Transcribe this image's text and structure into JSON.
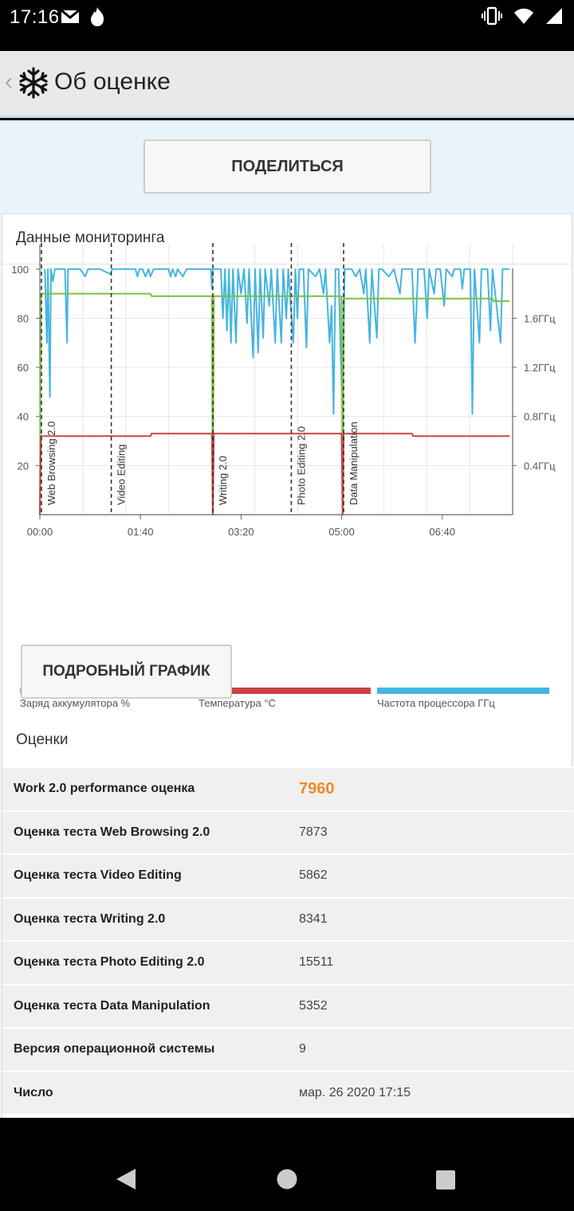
{
  "status_bar": {
    "time": "17:16",
    "left_icons": [
      "gmail-icon",
      "fire-icon"
    ],
    "right_icons": [
      "vibrate-icon",
      "wifi-icon",
      "signal-icon"
    ]
  },
  "app_bar": {
    "title": "Об оценке",
    "logo_icon": "snowflake-logo-icon",
    "back_icon": "chevron-left-icon"
  },
  "share": {
    "label": "ПОДЕЛИТЬСЯ"
  },
  "monitoring": {
    "title": "Данные мониторинга",
    "detail_button": "ПОДРОБНЫЙ ГРАФИК"
  },
  "chart_data": {
    "type": "line",
    "x_ticks": [
      "00:00",
      "01:40",
      "03:20",
      "05:00",
      "06:40"
    ],
    "x_range_seconds": [
      0,
      470
    ],
    "y_left_ticks": [
      "20",
      "40",
      "60",
      "80",
      "100"
    ],
    "y_left_range": [
      0,
      110
    ],
    "y_right_ticks": [
      "0.4ГГц",
      "0.8ГГц",
      "1.2ГГц",
      "1.6ГГц"
    ],
    "grid": true,
    "markers": [
      {
        "label": "Web Browsing 2.0",
        "t": 0
      },
      {
        "label": "Video Editing",
        "t": 71
      },
      {
        "label": "Writing 2.0",
        "t": 172
      },
      {
        "label": "Photo Editing 2.0",
        "t": 250
      },
      {
        "label": "Data Manipulation",
        "t": 302
      }
    ],
    "series": [
      {
        "name": "Заряд аккумулятора %",
        "color": "#7cbf3f",
        "points": [
          [
            0,
            0
          ],
          [
            1,
            90
          ],
          [
            110,
            90
          ],
          [
            111,
            89
          ],
          [
            171,
            89
          ],
          [
            172,
            0
          ],
          [
            173,
            89
          ],
          [
            300,
            89
          ],
          [
            301,
            0
          ],
          [
            302,
            88
          ],
          [
            450,
            88
          ],
          [
            451,
            87
          ],
          [
            467,
            87
          ]
        ]
      },
      {
        "name": "Температура °C",
        "color": "#c94343",
        "points": [
          [
            0,
            0
          ],
          [
            1,
            32
          ],
          [
            110,
            32
          ],
          [
            111,
            33
          ],
          [
            171,
            33
          ],
          [
            172,
            0
          ],
          [
            173,
            33
          ],
          [
            300,
            33
          ],
          [
            301,
            0
          ],
          [
            302,
            33
          ],
          [
            370,
            33
          ],
          [
            371,
            32
          ],
          [
            467,
            32
          ]
        ]
      },
      {
        "name": "Частота процессора ГГц",
        "color": "#45b5df",
        "points": [
          [
            5,
            100
          ],
          [
            7,
            70
          ],
          [
            8,
            100
          ],
          [
            10,
            48
          ],
          [
            11,
            100
          ],
          [
            13,
            95
          ],
          [
            15,
            100
          ],
          [
            25,
            100
          ],
          [
            27,
            70
          ],
          [
            28,
            100
          ],
          [
            33,
            100
          ],
          [
            40,
            100
          ],
          [
            45,
            97
          ],
          [
            48,
            100
          ],
          [
            55,
            100
          ],
          [
            60,
            100
          ],
          [
            70,
            98
          ],
          [
            72,
            100
          ],
          [
            95,
            100
          ],
          [
            97,
            97
          ],
          [
            99,
            100
          ],
          [
            102,
            100
          ],
          [
            105,
            97
          ],
          [
            108,
            100
          ],
          [
            110,
            97
          ],
          [
            113,
            100
          ],
          [
            128,
            100
          ],
          [
            130,
            97
          ],
          [
            132,
            100
          ],
          [
            135,
            97
          ],
          [
            137,
            100
          ],
          [
            142,
            97
          ],
          [
            146,
            100
          ],
          [
            170,
            100
          ],
          [
            171,
            92
          ],
          [
            172,
            100
          ],
          [
            180,
            100
          ],
          [
            182,
            80
          ],
          [
            184,
            100
          ],
          [
            186,
            75
          ],
          [
            188,
            100
          ],
          [
            190,
            70
          ],
          [
            192,
            100
          ],
          [
            195,
            70
          ],
          [
            197,
            100
          ],
          [
            200,
            90
          ],
          [
            203,
            100
          ],
          [
            206,
            78
          ],
          [
            208,
            100
          ],
          [
            212,
            64
          ],
          [
            214,
            100
          ],
          [
            217,
            66
          ],
          [
            219,
            100
          ],
          [
            222,
            72
          ],
          [
            224,
            100
          ],
          [
            228,
            85
          ],
          [
            230,
            100
          ],
          [
            234,
            70
          ],
          [
            236,
            100
          ],
          [
            240,
            70
          ],
          [
            242,
            100
          ],
          [
            245,
            80
          ],
          [
            247,
            100
          ],
          [
            252,
            70
          ],
          [
            254,
            100
          ],
          [
            256,
            80
          ],
          [
            258,
            100
          ],
          [
            262,
            100
          ],
          [
            265,
            68
          ],
          [
            267,
            100
          ],
          [
            274,
            97
          ],
          [
            278,
            100
          ],
          [
            282,
            90
          ],
          [
            284,
            100
          ],
          [
            288,
            70
          ],
          [
            290,
            85
          ],
          [
            292,
            41
          ],
          [
            294,
            100
          ],
          [
            297,
            100
          ],
          [
            299,
            66
          ],
          [
            301,
            43
          ],
          [
            303,
            100
          ],
          [
            310,
            100
          ],
          [
            314,
            97
          ],
          [
            318,
            100
          ],
          [
            322,
            90
          ],
          [
            324,
            100
          ],
          [
            328,
            70
          ],
          [
            330,
            100
          ],
          [
            335,
            72
          ],
          [
            337,
            100
          ],
          [
            340,
            100
          ],
          [
            347,
            97
          ],
          [
            352,
            100
          ],
          [
            358,
            90
          ],
          [
            360,
            100
          ],
          [
            370,
            100
          ],
          [
            373,
            70
          ],
          [
            376,
            100
          ],
          [
            382,
            100
          ],
          [
            385,
            80
          ],
          [
            387,
            100
          ],
          [
            392,
            90
          ],
          [
            394,
            100
          ],
          [
            398,
            100
          ],
          [
            402,
            85
          ],
          [
            404,
            100
          ],
          [
            410,
            97
          ],
          [
            412,
            100
          ],
          [
            418,
            100
          ],
          [
            420,
            92
          ],
          [
            422,
            100
          ],
          [
            428,
            100
          ],
          [
            430,
            41
          ],
          [
            432,
            100
          ],
          [
            437,
            70
          ],
          [
            439,
            100
          ],
          [
            445,
            100
          ],
          [
            448,
            75
          ],
          [
            450,
            100
          ],
          [
            458,
            70
          ],
          [
            460,
            100
          ],
          [
            467,
            100
          ]
        ]
      }
    ]
  },
  "scores": {
    "title": "Оценки",
    "rows": [
      {
        "label": "Work 2.0 performance оценка",
        "value": "7960"
      },
      {
        "label": "Оценка теста Web Browsing 2.0",
        "value": "7873"
      },
      {
        "label": "Оценка теста Video Editing",
        "value": "5862"
      },
      {
        "label": "Оценка теста Writing 2.0",
        "value": "8341"
      },
      {
        "label": "Оценка теста Photo Editing 2.0",
        "value": "15511"
      },
      {
        "label": "Оценка теста Data Manipulation",
        "value": "5352"
      },
      {
        "label": "Версия операционной системы",
        "value": "9"
      },
      {
        "label": "Число",
        "value": "мар. 26 2020 17:15"
      }
    ]
  },
  "nav": {
    "icons": [
      "back-triangle-icon",
      "home-circle-icon",
      "recents-square-icon"
    ]
  }
}
